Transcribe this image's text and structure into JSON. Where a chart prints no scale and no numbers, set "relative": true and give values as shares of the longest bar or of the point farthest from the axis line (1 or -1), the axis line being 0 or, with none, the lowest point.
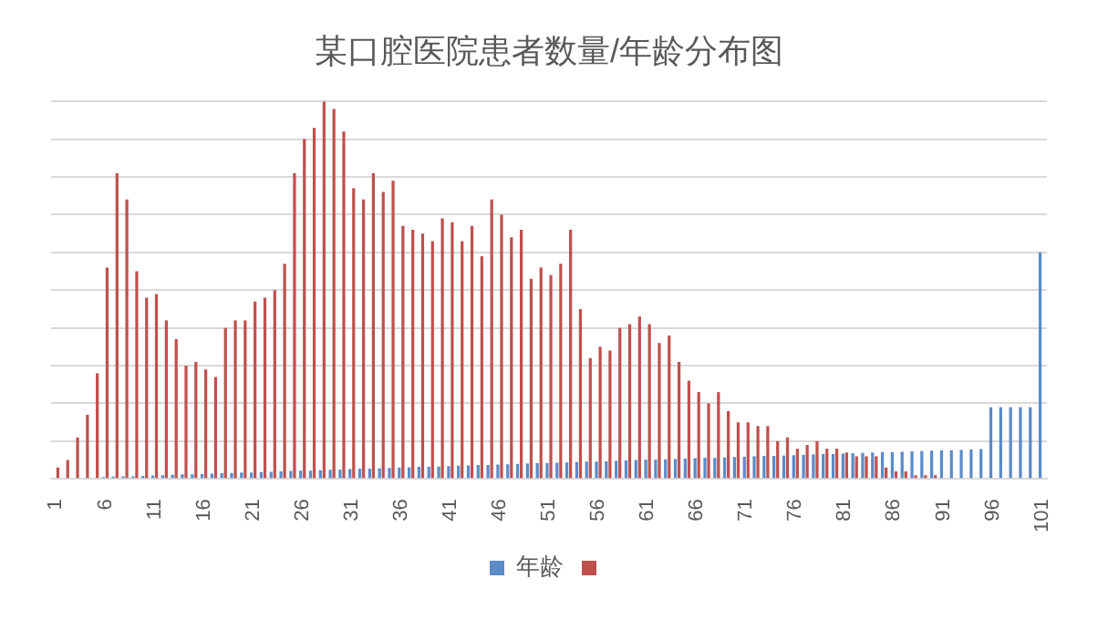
{
  "chart_data": {
    "type": "bar",
    "title": "某口腔医院患者数量/年龄分布图",
    "relative": true,
    "grid": "y",
    "legend": "bottom",
    "categories": [
      "1",
      null,
      null,
      null,
      null,
      "6",
      null,
      null,
      null,
      null,
      "11",
      null,
      null,
      null,
      null,
      "16",
      null,
      null,
      null,
      null,
      "21",
      null,
      null,
      null,
      null,
      "26",
      null,
      null,
      null,
      null,
      "31",
      null,
      null,
      null,
      null,
      "36",
      null,
      null,
      null,
      null,
      "41",
      null,
      null,
      null,
      null,
      "46",
      null,
      null,
      null,
      null,
      "51",
      null,
      null,
      null,
      null,
      "56",
      null,
      null,
      null,
      null,
      "61",
      null,
      null,
      null,
      null,
      "66",
      null,
      null,
      null,
      null,
      "71",
      null,
      null,
      null,
      null,
      "76",
      null,
      null,
      null,
      null,
      "81",
      null,
      null,
      null,
      null,
      "86",
      null,
      null,
      null,
      null,
      "91",
      null,
      null,
      null,
      null,
      "96",
      null,
      null,
      null,
      null,
      "101"
    ],
    "series": [
      {
        "name": "年龄",
        "color": "#5b8bc9",
        "values": [
          null,
          null,
          null,
          null,
          null,
          0.005,
          0.006,
          0.007,
          0.007,
          0.008,
          0.009,
          0.01,
          0.011,
          0.012,
          0.012,
          0.013,
          0.014,
          0.015,
          0.016,
          0.017,
          0.017,
          0.018,
          0.019,
          0.02,
          0.021,
          0.022,
          0.022,
          0.023,
          0.024,
          0.025,
          0.026,
          0.027,
          0.027,
          0.028,
          0.029,
          0.03,
          0.031,
          0.032,
          0.032,
          0.033,
          0.034,
          0.035,
          0.036,
          0.037,
          0.037,
          0.038,
          0.039,
          0.04,
          0.041,
          0.042,
          0.042,
          0.043,
          0.044,
          0.045,
          0.046,
          0.046,
          0.047,
          0.048,
          0.049,
          0.05,
          0.051,
          0.051,
          0.052,
          0.053,
          0.054,
          0.055,
          0.056,
          0.056,
          0.057,
          0.058,
          0.059,
          0.06,
          0.061,
          0.061,
          0.062,
          0.063,
          0.064,
          0.065,
          0.066,
          0.066,
          0.067,
          0.068,
          0.069,
          0.07,
          0.071,
          0.071,
          0.072,
          0.073,
          0.074,
          0.075,
          0.076,
          0.076,
          0.077,
          0.078,
          0.079,
          0.19,
          0.19,
          0.19,
          0.19,
          0.19,
          0.6
        ]
      },
      {
        "color": "#c0504d",
        "values": [
          0.03,
          0.05,
          0.11,
          0.17,
          0.28,
          0.56,
          0.81,
          0.74,
          0.55,
          0.48,
          0.49,
          0.42,
          0.37,
          0.3,
          0.31,
          0.29,
          0.27,
          0.4,
          0.42,
          0.42,
          0.47,
          0.48,
          0.5,
          0.57,
          0.81,
          0.9,
          0.93,
          1,
          0.98,
          0.92,
          0.77,
          0.74,
          0.81,
          0.76,
          0.79,
          0.67,
          0.66,
          0.65,
          0.63,
          0.69,
          0.68,
          0.63,
          0.67,
          0.59,
          0.74,
          0.7,
          0.64,
          0.66,
          0.53,
          0.56,
          0.54,
          0.57,
          0.66,
          0.45,
          0.32,
          0.35,
          0.34,
          0.4,
          0.41,
          0.43,
          0.41,
          0.36,
          0.38,
          0.31,
          0.26,
          0.23,
          0.2,
          0.23,
          0.18,
          0.15,
          0.15,
          0.14,
          0.14,
          0.1,
          0.11,
          0.08,
          0.09,
          0.1,
          0.08,
          0.08,
          0.07,
          0.06,
          0.06,
          0.06,
          0.03,
          0.02,
          0.02,
          0.01,
          0.01,
          0.01,
          0,
          0,
          0,
          0,
          0,
          0,
          0,
          0,
          0,
          0,
          0
        ]
      }
    ]
  }
}
